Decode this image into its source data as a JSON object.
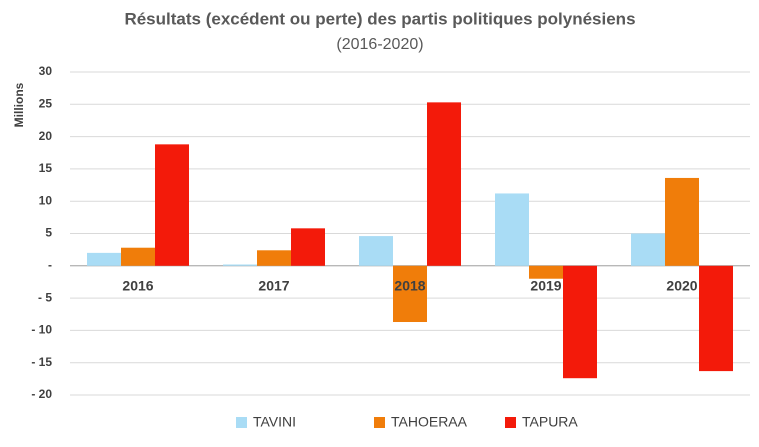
{
  "chart_data": {
    "type": "bar",
    "title": "Résultats (excédent ou perte) des partis politiques polynésiens",
    "subtitle": "(2016-2020)",
    "y_label": "Millions",
    "categories": [
      "2016",
      "2017",
      "2018",
      "2019",
      "2020"
    ],
    "series": [
      {
        "name": "TAVINI",
        "color": "#a9dcf5",
        "values": [
          2.0,
          0.2,
          4.6,
          11.2,
          5.0
        ]
      },
      {
        "name": "TAHOERAA",
        "color": "#f07d0a",
        "values": [
          2.8,
          2.4,
          -8.7,
          -2.0,
          13.6
        ]
      },
      {
        "name": "TAPURA",
        "color": "#f31a0a",
        "values": [
          18.8,
          5.8,
          25.3,
          -17.4,
          -16.3
        ]
      }
    ],
    "ylim": [
      -20,
      30
    ],
    "yticks": [
      {
        "value": -20,
        "label": "- 20"
      },
      {
        "value": -15,
        "label": "- 15"
      },
      {
        "value": -10,
        "label": "- 10"
      },
      {
        "value": -5,
        "label": "- 5"
      },
      {
        "value": 0,
        "label": "-"
      },
      5,
      10,
      15,
      20,
      25,
      30
    ],
    "grid": true,
    "legend": "bottom"
  }
}
